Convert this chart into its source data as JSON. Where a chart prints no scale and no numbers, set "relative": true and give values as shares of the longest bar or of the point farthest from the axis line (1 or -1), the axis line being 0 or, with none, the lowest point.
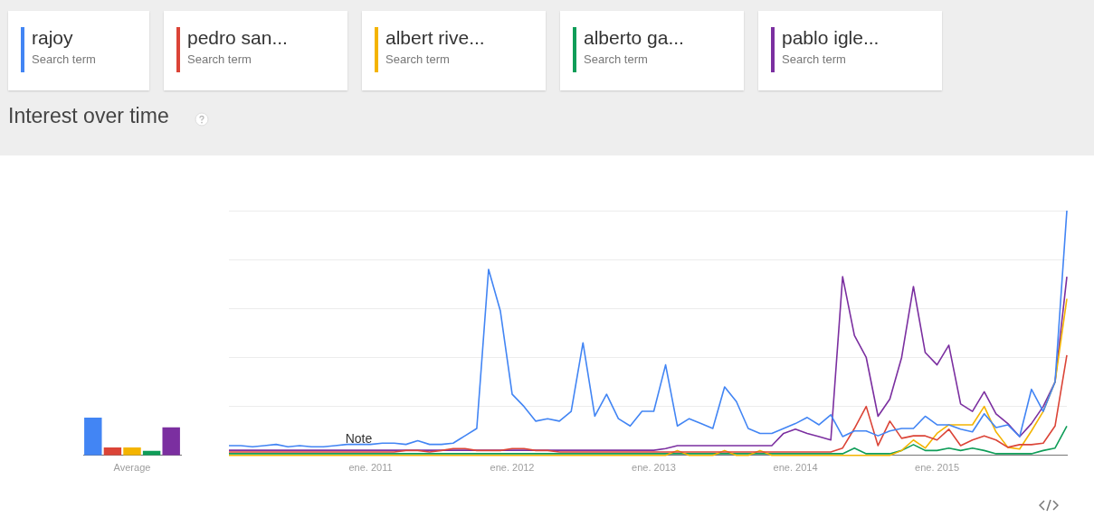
{
  "chart_data": [
    {
      "type": "line",
      "title": "Interest over time",
      "legend_title": "Search term",
      "legend": "top",
      "relative": true,
      "grid": "y",
      "marker": "none",
      "line_style": "solid",
      "x": [
        "2010-01",
        "2010-02",
        "2010-03",
        "2010-04",
        "2010-05",
        "2010-06",
        "2010-07",
        "2010-08",
        "2010-09",
        "2010-10",
        "2010-11",
        "2010-12",
        "2011-01",
        "2011-02",
        "2011-03",
        "2011-04",
        "2011-05",
        "2011-06",
        "2011-07",
        "2011-08",
        "2011-09",
        "2011-10",
        "2011-11",
        "2011-12",
        "2012-01",
        "2012-02",
        "2012-03",
        "2012-04",
        "2012-05",
        "2012-06",
        "2012-07",
        "2012-08",
        "2012-09",
        "2012-10",
        "2012-11",
        "2012-12",
        "2013-01",
        "2013-02",
        "2013-03",
        "2013-04",
        "2013-05",
        "2013-06",
        "2013-07",
        "2013-08",
        "2013-09",
        "2013-10",
        "2013-11",
        "2013-12",
        "2014-01",
        "2014-02",
        "2014-03",
        "2014-04",
        "2014-05",
        "2014-06",
        "2014-07",
        "2014-08",
        "2014-09",
        "2014-10",
        "2014-11",
        "2014-12",
        "2015-01",
        "2015-02",
        "2015-03",
        "2015-04",
        "2015-05",
        "2015-06",
        "2015-07",
        "2015-08",
        "2015-09",
        "2015-10",
        "2015-11",
        "2015-12"
      ],
      "xlim": [
        "2010-01",
        "2015-12"
      ],
      "xticks": [
        {
          "value": "2011-01",
          "label": "ene. 2011"
        },
        {
          "value": "2012-01",
          "label": "ene. 2012"
        },
        {
          "value": "2013-01",
          "label": "ene. 2013"
        },
        {
          "value": "2014-01",
          "label": "ene. 2014"
        },
        {
          "value": "2015-01",
          "label": "ene. 2015"
        }
      ],
      "annotations": [
        {
          "text": "Note",
          "x": "2010-12",
          "y": 0.04
        }
      ],
      "series": [
        {
          "name": "rajoy",
          "color": "#4285f4",
          "values": [
            0.04,
            0.04,
            0.035,
            0.04,
            0.045,
            0.035,
            0.04,
            0.035,
            0.035,
            0.04,
            0.045,
            0.045,
            0.045,
            0.05,
            0.05,
            0.045,
            0.06,
            0.045,
            0.045,
            0.05,
            0.08,
            0.11,
            0.76,
            0.59,
            0.25,
            0.2,
            0.14,
            0.15,
            0.14,
            0.18,
            0.46,
            0.16,
            0.25,
            0.15,
            0.12,
            0.18,
            0.18,
            0.37,
            0.12,
            0.15,
            0.13,
            0.11,
            0.28,
            0.22,
            0.11,
            0.09,
            0.09,
            0.11,
            0.13,
            0.155,
            0.125,
            0.166,
            0.077,
            0.1,
            0.1,
            0.08,
            0.1,
            0.11,
            0.11,
            0.16,
            0.125,
            0.125,
            0.107,
            0.096,
            0.17,
            0.114,
            0.125,
            0.077,
            0.27,
            0.18,
            0.3,
            1.0
          ]
        },
        {
          "name": "pedro san...",
          "color": "#db4437",
          "values": [
            0.014,
            0.014,
            0.014,
            0.014,
            0.014,
            0.014,
            0.014,
            0.014,
            0.014,
            0.014,
            0.014,
            0.014,
            0.014,
            0.014,
            0.014,
            0.02,
            0.02,
            0.014,
            0.02,
            0.028,
            0.028,
            0.02,
            0.02,
            0.02,
            0.028,
            0.028,
            0.02,
            0.02,
            0.014,
            0.014,
            0.014,
            0.014,
            0.014,
            0.014,
            0.014,
            0.014,
            0.014,
            0.014,
            0.014,
            0.014,
            0.014,
            0.014,
            0.014,
            0.014,
            0.014,
            0.014,
            0.014,
            0.014,
            0.014,
            0.014,
            0.014,
            0.014,
            0.03,
            0.11,
            0.2,
            0.04,
            0.14,
            0.07,
            0.08,
            0.08,
            0.063,
            0.107,
            0.04,
            0.063,
            0.08,
            0.063,
            0.033,
            0.044,
            0.044,
            0.05,
            0.12,
            0.41
          ]
        },
        {
          "name": "albert rive...",
          "color": "#f4b400",
          "values": [
            0,
            0,
            0,
            0,
            0,
            0,
            0,
            0,
            0,
            0,
            0,
            0,
            0,
            0,
            0,
            0,
            0,
            0,
            0,
            0,
            0,
            0,
            0,
            0,
            0,
            0,
            0,
            0,
            0,
            0,
            0,
            0,
            0,
            0,
            0,
            0,
            0,
            0,
            0.02,
            0,
            0,
            0,
            0.02,
            0,
            0,
            0.02,
            0,
            0,
            0,
            0,
            0,
            0,
            0,
            0,
            0,
            0,
            0,
            0.02,
            0.063,
            0.03,
            0.09,
            0.125,
            0.125,
            0.125,
            0.2,
            0.096,
            0.033,
            0.026,
            0.1,
            0.18,
            0.3,
            0.64
          ]
        },
        {
          "name": "alberto ga...",
          "color": "#0f9d58",
          "values": [
            0.007,
            0.007,
            0.007,
            0.007,
            0.007,
            0.007,
            0.007,
            0.007,
            0.007,
            0.007,
            0.007,
            0.007,
            0.007,
            0.007,
            0.007,
            0.007,
            0.007,
            0.007,
            0.007,
            0.007,
            0.007,
            0.007,
            0.007,
            0.007,
            0.007,
            0.007,
            0.007,
            0.007,
            0.007,
            0.007,
            0.007,
            0.007,
            0.007,
            0.007,
            0.007,
            0.007,
            0.007,
            0.007,
            0.007,
            0.007,
            0.007,
            0.007,
            0.007,
            0.007,
            0.007,
            0.007,
            0.007,
            0.007,
            0.007,
            0.007,
            0.007,
            0.007,
            0.007,
            0.03,
            0.007,
            0.007,
            0.007,
            0.02,
            0.044,
            0.02,
            0.02,
            0.03,
            0.02,
            0.03,
            0.02,
            0.007,
            0.007,
            0.007,
            0.007,
            0.02,
            0.03,
            0.12
          ]
        },
        {
          "name": "pablo igle...",
          "color": "#7b2fa0",
          "values": [
            0.021,
            0.021,
            0.021,
            0.021,
            0.021,
            0.021,
            0.021,
            0.021,
            0.021,
            0.021,
            0.021,
            0.021,
            0.021,
            0.021,
            0.021,
            0.021,
            0.021,
            0.021,
            0.021,
            0.021,
            0.021,
            0.021,
            0.021,
            0.021,
            0.021,
            0.021,
            0.021,
            0.021,
            0.021,
            0.021,
            0.021,
            0.021,
            0.021,
            0.021,
            0.021,
            0.021,
            0.021,
            0.028,
            0.04,
            0.04,
            0.04,
            0.04,
            0.04,
            0.04,
            0.04,
            0.04,
            0.04,
            0.09,
            0.107,
            0.09,
            0.077,
            0.063,
            0.73,
            0.49,
            0.4,
            0.16,
            0.23,
            0.4,
            0.69,
            0.42,
            0.37,
            0.45,
            0.21,
            0.18,
            0.26,
            0.17,
            0.13,
            0.077,
            0.13,
            0.2,
            0.3,
            0.73
          ]
        }
      ]
    },
    {
      "type": "bar",
      "relative": true,
      "categories": [
        null,
        null,
        "Average",
        null,
        null
      ],
      "values": [
        1,
        0.21,
        0.21,
        0.12,
        0.74
      ],
      "colors": [
        "#4285f4",
        "#db4437",
        "#f4b400",
        "#0f9d58",
        "#7b2fa0"
      ]
    }
  ]
}
